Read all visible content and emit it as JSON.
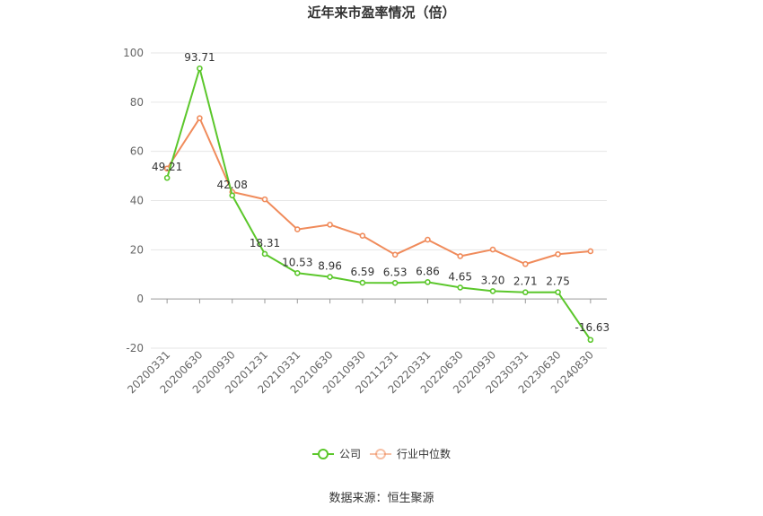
{
  "chart_data": {
    "type": "line",
    "title": "近年来市盈率情况（倍）",
    "categories": [
      "20200331",
      "20200630",
      "20200930",
      "20201231",
      "20210331",
      "20210630",
      "20210930",
      "20211231",
      "20220331",
      "20220630",
      "20220930",
      "20230331",
      "20230630",
      "20240830"
    ],
    "series": [
      {
        "name": "公司",
        "color": "#5bc72b",
        "values": [
          49.21,
          93.71,
          42.08,
          18.31,
          10.53,
          8.96,
          6.59,
          6.53,
          6.86,
          4.65,
          3.2,
          2.71,
          2.75,
          -16.63
        ],
        "labels": [
          "49.21",
          "93.71",
          "42.08",
          "18.31",
          "10.53",
          "8.96",
          "6.59",
          "6.53",
          "6.86",
          "4.65",
          "3.20",
          "2.71",
          "2.75",
          "-16.63"
        ]
      },
      {
        "name": "行业中位数",
        "color": "#f08b5b",
        "values": [
          53.0,
          73.5,
          43.5,
          40.5,
          28.3,
          30.2,
          25.7,
          18.0,
          24.1,
          17.4,
          20.1,
          14.2,
          18.2,
          19.4
        ]
      }
    ],
    "ylim": [
      -20,
      100
    ],
    "yticks": [
      -20,
      0,
      20,
      40,
      60,
      80,
      100
    ],
    "grid": true,
    "legend_position": "bottom-center"
  },
  "source_text": "数据来源：恒生聚源"
}
